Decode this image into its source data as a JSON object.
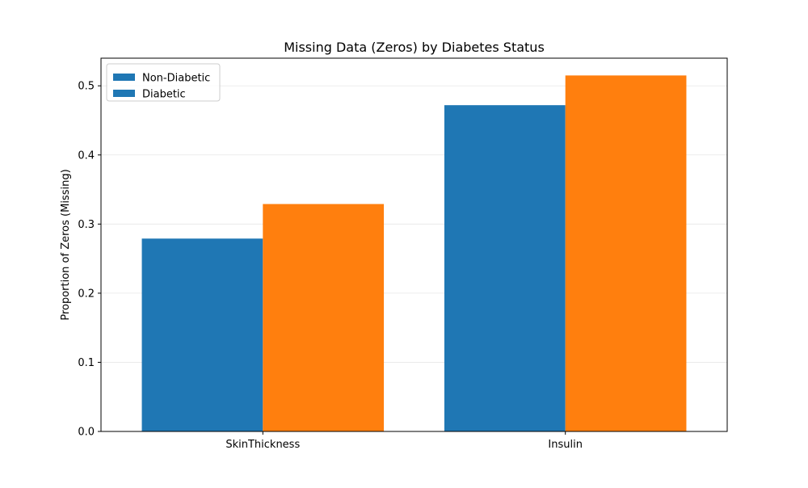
{
  "chart_data": {
    "type": "bar",
    "title": "Missing Data (Zeros) by Diabetes Status",
    "xlabel": "",
    "ylabel": "Proportion of Zeros (Missing)",
    "categories": [
      "SkinThickness",
      "Insulin"
    ],
    "series": [
      {
        "name": "Non-Diabetic",
        "values": [
          0.279,
          0.472
        ],
        "color": "#1f77b4"
      },
      {
        "name": "Diabetic",
        "values": [
          0.329,
          0.515
        ],
        "color": "#ff7f0e"
      }
    ],
    "legend_swatch_colors": [
      "#1f77b4",
      "#1f77b4"
    ],
    "ylim": [
      0,
      0.54
    ],
    "yticks": [
      0.0,
      0.1,
      0.2,
      0.3,
      0.4,
      0.5
    ],
    "ytick_labels": [
      "0.0",
      "0.1",
      "0.2",
      "0.3",
      "0.4",
      "0.5"
    ],
    "grid": "y",
    "legend_position": "upper-left"
  }
}
